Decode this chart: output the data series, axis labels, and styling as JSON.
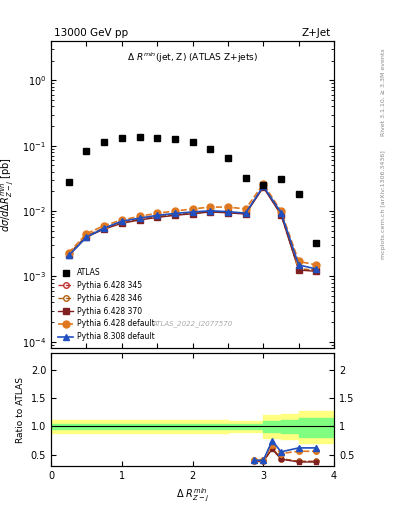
{
  "title_left": "13000 GeV pp",
  "title_right": "Z+Jet",
  "plot_title": "Δ R^{min}(jet, Z) (ATLAS Z+jets)",
  "xlabel": "Δ R^{min}_{Z-j}",
  "ylabel_main": "dσ/dΔ R^{min}_{Z-j} [pb]",
  "ylabel_ratio": "Ratio to ATLAS",
  "right_label_top": "Rivet 3.1.10, ≥ 3.3M events",
  "right_label_bottom": "mcplots.cern.ch [arXiv:1306.3436]",
  "watermark": "ATLAS_2022_I2077570",
  "atlas_x": [
    0.25,
    0.5,
    0.75,
    1.0,
    1.25,
    1.5,
    1.75,
    2.0,
    2.25,
    2.5,
    2.75,
    3.0,
    3.25,
    3.5,
    3.75
  ],
  "atlas_y": [
    0.028,
    0.082,
    0.115,
    0.13,
    0.135,
    0.13,
    0.125,
    0.115,
    0.09,
    0.065,
    0.032,
    0.025,
    0.031,
    0.018,
    0.0032
  ],
  "py6_345_x": [
    0.25,
    0.5,
    0.75,
    1.0,
    1.25,
    1.5,
    1.75,
    2.0,
    2.25,
    2.5,
    2.75,
    3.0,
    3.25,
    3.5,
    3.75
  ],
  "py6_345_y": [
    0.0022,
    0.0042,
    0.0055,
    0.0068,
    0.0075,
    0.0082,
    0.0088,
    0.0093,
    0.0098,
    0.0095,
    0.0092,
    0.024,
    0.009,
    0.0013,
    0.00125
  ],
  "py6_346_x": [
    0.25,
    0.5,
    0.75,
    1.0,
    1.25,
    1.5,
    1.75,
    2.0,
    2.25,
    2.5,
    2.75,
    3.0,
    3.25,
    3.5,
    3.75
  ],
  "py6_346_y": [
    0.0022,
    0.0042,
    0.0055,
    0.0068,
    0.0075,
    0.0082,
    0.0088,
    0.0093,
    0.0098,
    0.0095,
    0.0092,
    0.024,
    0.009,
    0.0013,
    0.00125
  ],
  "py6_370_x": [
    0.25,
    0.5,
    0.75,
    1.0,
    1.25,
    1.5,
    1.75,
    2.0,
    2.25,
    2.5,
    2.75,
    3.0,
    3.25,
    3.5,
    3.75
  ],
  "py6_370_y": [
    0.0021,
    0.004,
    0.0053,
    0.0065,
    0.0073,
    0.008,
    0.0086,
    0.0091,
    0.0097,
    0.0094,
    0.009,
    0.023,
    0.0088,
    0.00125,
    0.0012
  ],
  "py6_def_x": [
    0.25,
    0.5,
    0.75,
    1.0,
    1.25,
    1.5,
    1.75,
    2.0,
    2.25,
    2.5,
    2.75,
    3.0,
    3.25,
    3.5,
    3.75
  ],
  "py6_def_y": [
    0.0023,
    0.0045,
    0.006,
    0.0073,
    0.0083,
    0.0093,
    0.01,
    0.0108,
    0.0115,
    0.0115,
    0.0108,
    0.026,
    0.01,
    0.0017,
    0.0015
  ],
  "py8_def_x": [
    0.25,
    0.5,
    0.75,
    1.0,
    1.25,
    1.5,
    1.75,
    2.0,
    2.25,
    2.5,
    2.75,
    3.0,
    3.25,
    3.5,
    3.75
  ],
  "py8_def_y": [
    0.0021,
    0.004,
    0.0055,
    0.007,
    0.0078,
    0.0086,
    0.0092,
    0.0097,
    0.0101,
    0.0098,
    0.0093,
    0.024,
    0.0095,
    0.0015,
    0.0013
  ],
  "ratio_green_x": [
    0.0,
    0.25,
    0.5,
    0.75,
    1.0,
    1.25,
    1.5,
    1.75,
    2.0,
    2.25,
    2.5,
    2.75,
    3.0,
    3.25,
    3.5,
    3.75,
    4.0
  ],
  "ratio_green_lo": [
    0.95,
    0.95,
    0.95,
    0.95,
    0.95,
    0.95,
    0.95,
    0.95,
    0.95,
    0.95,
    0.95,
    0.95,
    0.95,
    0.9,
    0.88,
    0.82,
    0.82
  ],
  "ratio_green_hi": [
    1.05,
    1.05,
    1.05,
    1.05,
    1.05,
    1.05,
    1.05,
    1.05,
    1.05,
    1.05,
    1.05,
    1.05,
    1.05,
    1.1,
    1.12,
    1.15,
    1.15
  ],
  "ratio_yellow_lo": [
    0.9,
    0.88,
    0.88,
    0.88,
    0.88,
    0.88,
    0.88,
    0.88,
    0.88,
    0.88,
    0.88,
    0.9,
    0.9,
    0.8,
    0.78,
    0.7,
    0.7
  ],
  "ratio_yellow_hi": [
    1.1,
    1.12,
    1.12,
    1.12,
    1.12,
    1.12,
    1.12,
    1.12,
    1.12,
    1.12,
    1.12,
    1.1,
    1.1,
    1.2,
    1.22,
    1.28,
    1.28
  ],
  "ratio_py6_345_x": [
    2.875,
    3.0,
    3.125,
    3.25,
    3.5,
    3.75
  ],
  "ratio_py6_345_y": [
    0.38,
    0.38,
    0.62,
    0.43,
    0.38,
    0.38
  ],
  "ratio_py6_346_x": [
    2.875,
    3.0,
    3.125,
    3.25,
    3.5,
    3.75
  ],
  "ratio_py6_346_y": [
    0.38,
    0.38,
    0.62,
    0.43,
    0.38,
    0.38
  ],
  "ratio_py6_370_x": [
    2.875,
    3.0,
    3.125,
    3.25,
    3.5,
    3.75
  ],
  "ratio_py6_370_y": [
    0.38,
    0.38,
    0.6,
    0.42,
    0.37,
    0.37
  ],
  "ratio_py6_def_x": [
    2.875,
    3.0,
    3.125,
    3.25,
    3.5,
    3.75
  ],
  "ratio_py6_def_y": [
    0.4,
    0.4,
    0.68,
    0.52,
    0.56,
    0.56
  ],
  "ratio_py8_def_x": [
    2.875,
    3.0,
    3.125,
    3.25,
    3.5,
    3.75
  ],
  "ratio_py8_def_y": [
    0.4,
    0.4,
    0.75,
    0.55,
    0.62,
    0.62
  ],
  "color_py6_345": "#c03030",
  "color_py6_346": "#b06010",
  "color_py6_370": "#802020",
  "color_py6_def": "#e07820",
  "color_py8_def": "#2050c0",
  "ylim_main": [
    8e-05,
    4.0
  ],
  "ylim_ratio": [
    0.3,
    2.3
  ],
  "xlim": [
    0.0,
    4.0
  ]
}
